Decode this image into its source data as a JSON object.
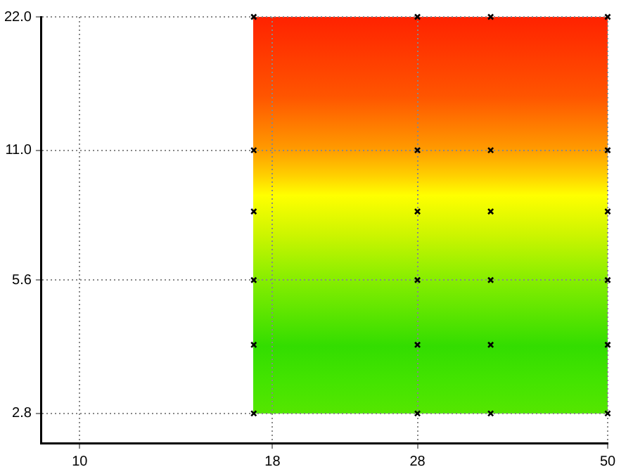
{
  "chart_data": {
    "type": "scatter",
    "log": "xy",
    "grid": true,
    "marker": "cross",
    "xlim": [
      8.9,
      50
    ],
    "ylim": [
      2.4,
      22
    ],
    "xticks": [
      10,
      18,
      28,
      50
    ],
    "yticks": [
      {
        "value": 2.8,
        "label": "2.8"
      },
      {
        "value": 5.6,
        "label": "5.6"
      },
      {
        "value": 11,
        "label": "11.0"
      },
      {
        "value": 22,
        "label": "22.0"
      }
    ],
    "series": [
      {
        "color": "#000000",
        "x": [
          17,
          17,
          17,
          17,
          17,
          17,
          28,
          28,
          28,
          28,
          28,
          28,
          35,
          35,
          35,
          35,
          35,
          35,
          50,
          50,
          50,
          50,
          50,
          50
        ],
        "values": [
          2.8,
          4,
          5.6,
          8,
          11,
          22,
          2.8,
          4,
          5.6,
          8,
          11,
          22,
          2.8,
          4,
          5.6,
          8,
          11,
          22,
          2.8,
          4,
          5.6,
          8,
          11,
          22
        ]
      }
    ]
  }
}
